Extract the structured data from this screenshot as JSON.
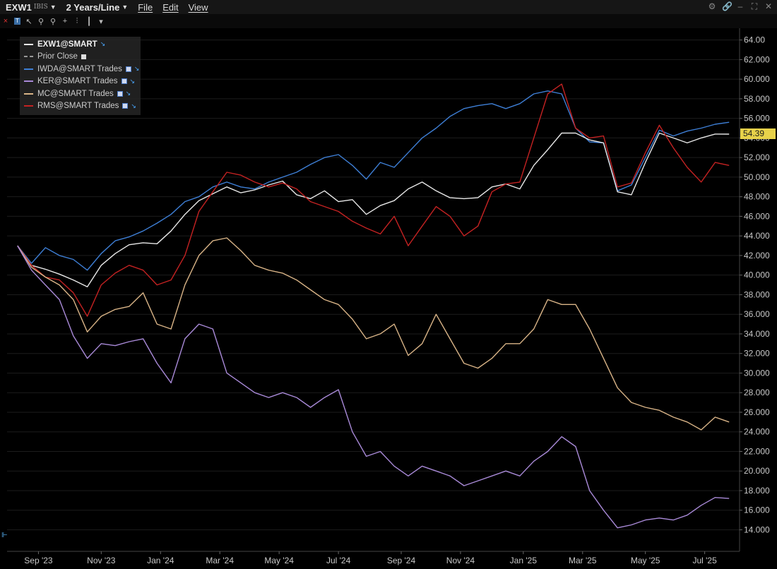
{
  "window": {
    "symbol": "EXW1",
    "exchange": "IBIS",
    "period": "2 Years/Line",
    "menus": [
      "File",
      "Edit",
      "View"
    ]
  },
  "toolbar": {
    "icons": [
      "close-icon",
      "text-tool-icon",
      "draw-line-icon",
      "zoom-in-icon",
      "zoom-out-icon",
      "crosshair-icon",
      "bar-style-icon",
      "candle-style-icon",
      "more-icon"
    ]
  },
  "legend": [
    {
      "label": "EXW1@SMART",
      "color": "#e8e8e8",
      "style": "solid",
      "checkbox": false,
      "arrow": true
    },
    {
      "label": "Prior Close",
      "color": "#9a9a9a",
      "style": "dashed",
      "checkbox": true,
      "arrow": false
    },
    {
      "label": "IWDA@SMART Trades",
      "color": "#3e7fd6",
      "style": "solid",
      "checkbox": true,
      "arrow": true
    },
    {
      "label": "KER@SMART Trades",
      "color": "#a98ad8",
      "style": "solid",
      "checkbox": true,
      "arrow": true
    },
    {
      "label": "MC@SMART Trades",
      "color": "#d9b487",
      "style": "solid",
      "checkbox": true,
      "arrow": true
    },
    {
      "label": "RMS@SMART Trades",
      "color": "#c42222",
      "style": "solid",
      "checkbox": true,
      "arrow": true
    }
  ],
  "last_price": "54.39",
  "chart_data": {
    "type": "line",
    "x_unit": "weeks since first bar (Aug 2023)",
    "x_ticks": [
      {
        "label": "Sep '23",
        "x": 3
      },
      {
        "label": "Nov '23",
        "x": 12
      },
      {
        "label": "Jan '24",
        "x": 20.5
      },
      {
        "label": "Mar '24",
        "x": 29
      },
      {
        "label": "May '24",
        "x": 37.5
      },
      {
        "label": "Jul '24",
        "x": 46
      },
      {
        "label": "Sep '24",
        "x": 55
      },
      {
        "label": "Nov '24",
        "x": 63.5
      },
      {
        "label": "Jan '25",
        "x": 72.5
      },
      {
        "label": "Mar '25",
        "x": 81
      },
      {
        "label": "May '25",
        "x": 90
      },
      {
        "label": "Jul '25",
        "x": 98.5
      }
    ],
    "ylim": [
      11.8,
      65.2
    ],
    "y_ticks": [
      14,
      16,
      18,
      20,
      22,
      24,
      26,
      28,
      30,
      32,
      34,
      36,
      38,
      40,
      42,
      44,
      46,
      48,
      50,
      52,
      54,
      56,
      58,
      60,
      62,
      64
    ],
    "y_tick_labels": [
      "14.000",
      "16.000",
      "18.000",
      "20.000",
      "22.000",
      "24.000",
      "26.000",
      "28.000",
      "30.000",
      "32.000",
      "34.000",
      "36.000",
      "38.000",
      "40.000",
      "42.000",
      "44.000",
      "46.000",
      "48.000",
      "50.000",
      "52.000",
      "54.000",
      "56.000",
      "58.000",
      "60.000",
      "62.000",
      "64.00"
    ],
    "xlim": [
      -1.5,
      103.5
    ],
    "series": [
      {
        "name": "IWDA@SMART Trades",
        "color": "#3e7fd6",
        "x": [
          0,
          2,
          4,
          6,
          8,
          10,
          12,
          14,
          16,
          18,
          20,
          22,
          24,
          26,
          28,
          30,
          32,
          34,
          36,
          38,
          40,
          42,
          44,
          46,
          48,
          50,
          52,
          54,
          56,
          58,
          60,
          62,
          64,
          66,
          68,
          70,
          72,
          74,
          76,
          78,
          80,
          82,
          84,
          86,
          88,
          90,
          92,
          94,
          96,
          98,
          100,
          102
        ],
        "values": [
          43.0,
          41.2,
          42.8,
          42.0,
          41.6,
          40.5,
          42.2,
          43.5,
          43.9,
          44.5,
          45.3,
          46.2,
          47.5,
          48.0,
          49.0,
          49.5,
          49.0,
          48.8,
          49.5,
          50.0,
          50.5,
          51.3,
          52.0,
          52.3,
          51.2,
          49.8,
          51.5,
          51.0,
          52.5,
          54.0,
          55.0,
          56.2,
          57.0,
          57.3,
          57.5,
          57.0,
          57.5,
          58.5,
          58.8,
          58.5,
          55.0,
          53.6,
          53.5,
          48.6,
          49.2,
          52.0,
          54.8,
          54.2,
          54.7,
          55.0,
          55.4,
          55.6
        ]
      },
      {
        "name": "EXW1@SMART",
        "color": "#e8e8e8",
        "x": [
          0,
          2,
          4,
          6,
          8,
          10,
          12,
          14,
          16,
          18,
          20,
          22,
          24,
          26,
          28,
          30,
          32,
          34,
          36,
          38,
          40,
          42,
          44,
          46,
          48,
          50,
          52,
          54,
          56,
          58,
          60,
          62,
          64,
          66,
          68,
          70,
          72,
          74,
          76,
          78,
          80,
          82,
          84,
          86,
          88,
          90,
          92,
          94,
          96,
          98,
          100,
          102
        ],
        "values": [
          43.0,
          41.0,
          40.6,
          40.1,
          39.5,
          38.8,
          41.0,
          42.2,
          43.1,
          43.3,
          43.2,
          44.5,
          46.2,
          47.6,
          48.3,
          49.0,
          48.4,
          48.7,
          49.2,
          49.6,
          48.2,
          47.8,
          48.6,
          47.5,
          47.7,
          46.2,
          47.1,
          47.6,
          48.8,
          49.5,
          48.6,
          47.9,
          47.8,
          47.9,
          49.0,
          49.3,
          48.8,
          51.2,
          52.8,
          54.5,
          54.5,
          53.8,
          53.5,
          48.5,
          48.2,
          51.5,
          54.5,
          54.0,
          53.5,
          54.0,
          54.4,
          54.39
        ]
      },
      {
        "name": "RMS@SMART Trades",
        "color": "#c42222",
        "x": [
          0,
          2,
          4,
          6,
          8,
          10,
          12,
          14,
          16,
          18,
          20,
          22,
          24,
          26,
          28,
          30,
          32,
          34,
          36,
          38,
          40,
          42,
          44,
          46,
          48,
          50,
          52,
          54,
          56,
          58,
          60,
          62,
          64,
          66,
          68,
          70,
          72,
          74,
          76,
          78,
          80,
          82,
          84,
          86,
          88,
          90,
          92,
          94,
          96,
          98,
          100,
          102
        ],
        "values": [
          43.0,
          41.0,
          39.8,
          39.5,
          38.2,
          35.8,
          39.0,
          40.2,
          41.0,
          40.5,
          39.0,
          39.5,
          42.0,
          46.5,
          48.5,
          50.5,
          50.2,
          49.5,
          49.0,
          49.4,
          48.8,
          47.5,
          47.0,
          46.5,
          45.5,
          44.8,
          44.2,
          46.0,
          43.0,
          45.0,
          47.0,
          46.0,
          44.0,
          45.0,
          48.5,
          49.3,
          49.5,
          54.0,
          58.5,
          59.5,
          55.0,
          54.0,
          54.2,
          49.0,
          49.4,
          52.5,
          55.3,
          53.0,
          51.0,
          49.5,
          51.5,
          51.2
        ]
      },
      {
        "name": "MC@SMART Trades",
        "color": "#d9b487",
        "x": [
          0,
          2,
          4,
          6,
          8,
          10,
          12,
          14,
          16,
          18,
          20,
          22,
          24,
          26,
          28,
          30,
          32,
          34,
          36,
          38,
          40,
          42,
          44,
          46,
          48,
          50,
          52,
          54,
          56,
          58,
          60,
          62,
          64,
          66,
          68,
          70,
          72,
          74,
          76,
          78,
          80,
          82,
          84,
          86,
          88,
          90,
          92,
          94,
          96,
          98,
          100,
          102
        ],
        "values": [
          43.0,
          40.8,
          39.8,
          39.0,
          37.5,
          34.2,
          35.8,
          36.5,
          36.8,
          38.2,
          35.0,
          34.5,
          39.0,
          42.0,
          43.5,
          43.8,
          42.5,
          41.0,
          40.5,
          40.2,
          39.5,
          38.5,
          37.5,
          37.0,
          35.5,
          33.5,
          34.0,
          35.0,
          31.8,
          33.0,
          36.0,
          33.5,
          31.0,
          30.5,
          31.5,
          33.0,
          33.0,
          34.5,
          37.5,
          37.0,
          37.0,
          34.5,
          31.5,
          28.5,
          27.0,
          26.5,
          26.2,
          25.5,
          25.0,
          24.2,
          25.5,
          25.0
        ]
      },
      {
        "name": "KER@SMART Trades",
        "color": "#a98ad8",
        "x": [
          0,
          2,
          4,
          6,
          8,
          10,
          12,
          14,
          16,
          18,
          20,
          22,
          24,
          26,
          28,
          30,
          32,
          34,
          36,
          38,
          40,
          42,
          44,
          46,
          48,
          50,
          52,
          54,
          56,
          58,
          60,
          62,
          64,
          66,
          68,
          70,
          72,
          74,
          76,
          78,
          80,
          82,
          84,
          86,
          88,
          90,
          92,
          94,
          96,
          98,
          100,
          102
        ],
        "values": [
          43.0,
          40.5,
          39.0,
          37.5,
          33.8,
          31.5,
          33.0,
          32.8,
          33.2,
          33.5,
          31.0,
          29.0,
          33.5,
          35.0,
          34.5,
          30.0,
          29.0,
          28.0,
          27.5,
          28.0,
          27.5,
          26.5,
          27.5,
          28.3,
          24.0,
          21.5,
          22.0,
          20.5,
          19.5,
          20.5,
          20.0,
          19.5,
          18.5,
          19.0,
          19.5,
          20.0,
          19.5,
          21.0,
          22.0,
          23.5,
          22.5,
          18.0,
          16.0,
          14.2,
          14.5,
          15.0,
          15.2,
          15.0,
          15.5,
          16.5,
          17.3,
          17.2
        ]
      }
    ]
  }
}
